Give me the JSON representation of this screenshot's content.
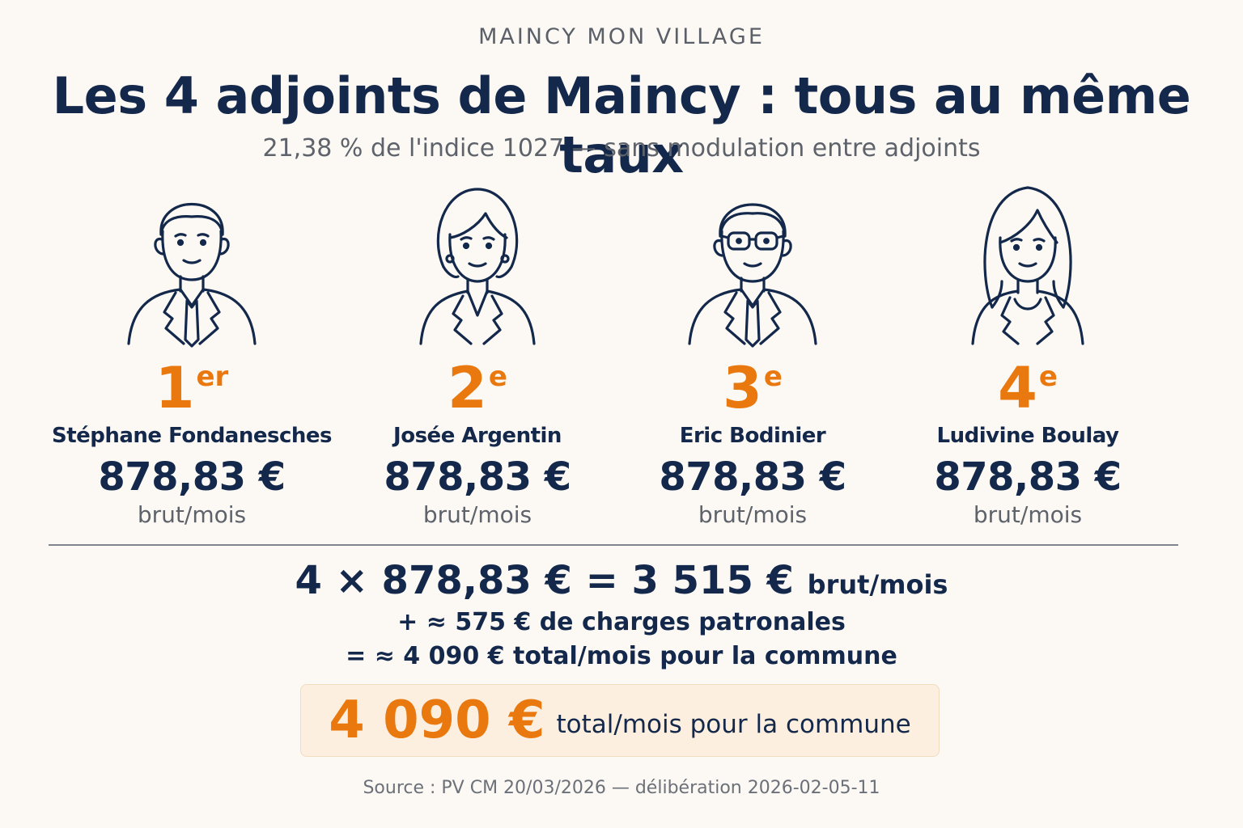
{
  "header": {
    "kicker": "MAINCY MON VILLAGE",
    "title": "Les 4 adjoints de Maincy : tous au même taux",
    "subtitle": "21,38 % de l'indice 1027 — sans modulation entre adjoints"
  },
  "adjoints": [
    {
      "rank_num": "1",
      "rank_sup": "er",
      "name": "Stéphane Fondanesches",
      "amount": "878,83 €",
      "period": "brut/mois",
      "icon": "man-suit-icon"
    },
    {
      "rank_num": "2",
      "rank_sup": "e",
      "name": "Josée Argentin",
      "amount": "878,83 €",
      "period": "brut/mois",
      "icon": "woman-short-hair-icon"
    },
    {
      "rank_num": "3",
      "rank_sup": "e",
      "name": "Eric Bodinier",
      "amount": "878,83 €",
      "period": "brut/mois",
      "icon": "man-glasses-icon"
    },
    {
      "rank_num": "4",
      "rank_sup": "e",
      "name": "Ludivine Boulay",
      "amount": "878,83 €",
      "period": "brut/mois",
      "icon": "woman-long-hair-icon"
    }
  ],
  "calculation": {
    "equation": "4 × 878,83 € = 3 515 €",
    "equation_unit": "brut/mois",
    "charges": "+ ≈ 575 € de charges patronales",
    "total_line": "= ≈ 4 090 € total/mois pour la commune"
  },
  "total": {
    "amount": "4 090 €",
    "label": "total/mois pour la commune"
  },
  "source": "Source : PV CM 20/03/2026 — délibération 2026-02-05-11",
  "colors": {
    "navy": "#13284a",
    "orange": "#e9780f",
    "background": "#fcf9f4",
    "highlight_box": "#fcefdf"
  }
}
